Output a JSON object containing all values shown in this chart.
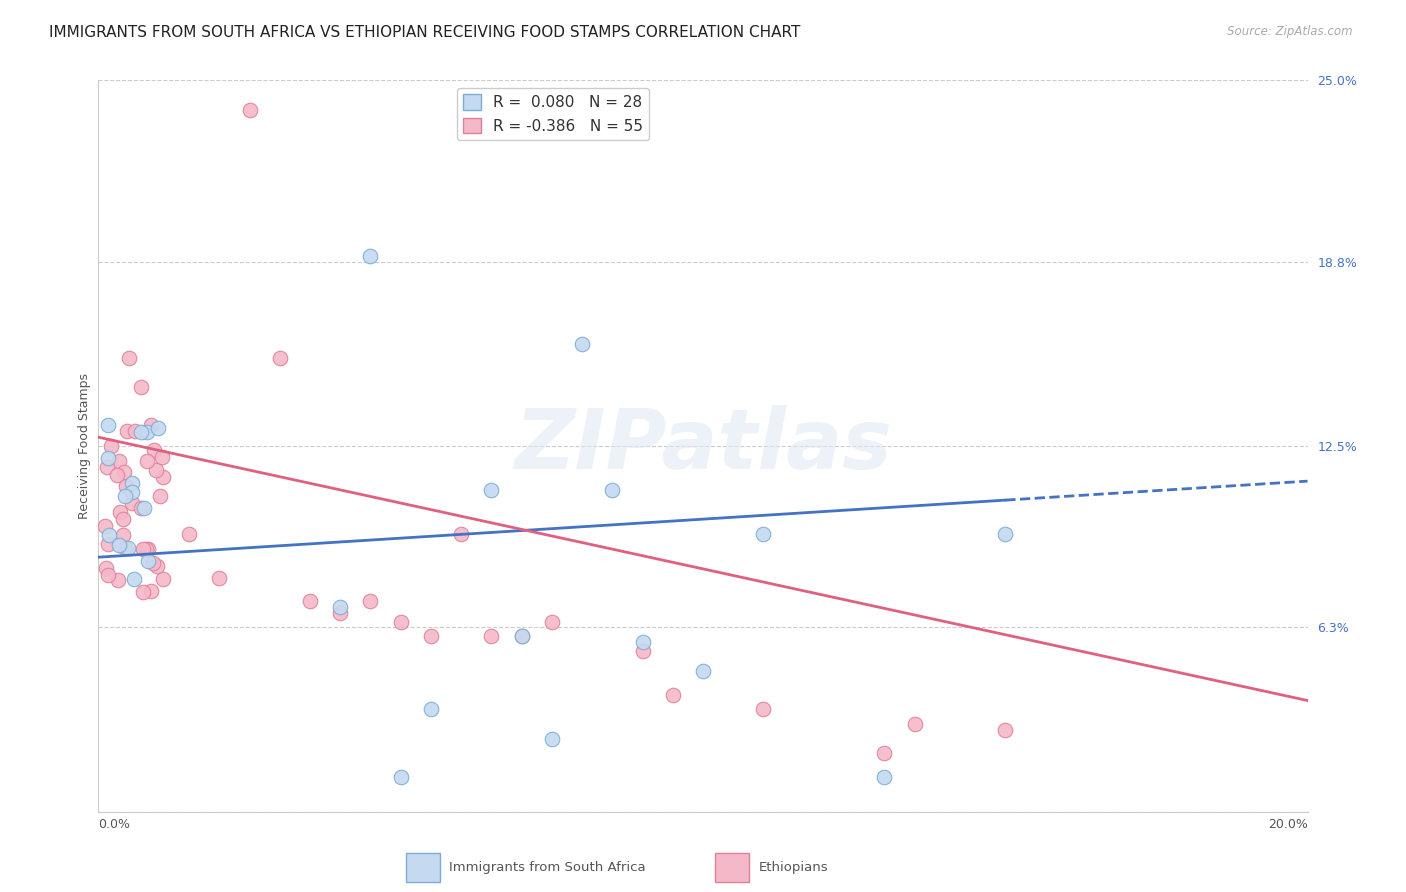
{
  "title": "IMMIGRANTS FROM SOUTH AFRICA VS ETHIOPIAN RECEIVING FOOD STAMPS CORRELATION CHART",
  "source": "Source: ZipAtlas.com",
  "ylabel": "Receiving Food Stamps",
  "blue_label": "Immigrants from South Africa",
  "pink_label": "Ethiopians",
  "xmin": 0.0,
  "xmax": 0.2,
  "ymin": 0.0,
  "ymax": 0.25,
  "blue_dot_color": "#c5d9f0",
  "blue_edge_color": "#7aadd4",
  "blue_line_color": "#4472c4",
  "pink_dot_color": "#f4b8c8",
  "pink_edge_color": "#e08098",
  "pink_line_color": "#e06080",
  "right_axis_color": "#4472c4",
  "grid_color": "#cccccc",
  "background_color": "#ffffff",
  "legend_r_blue": "R =  0.080",
  "legend_n_blue": "N = 28",
  "legend_r_pink": "R = -0.386",
  "legend_n_pink": "N = 55",
  "right_ytick_vals": [
    0.0,
    0.063,
    0.125,
    0.188,
    0.25
  ],
  "right_ytick_labels": [
    "",
    "6.3%",
    "12.5%",
    "18.8%",
    "25.0%"
  ],
  "blue_line_y0": 0.087,
  "blue_line_y1": 0.113,
  "pink_line_y0": 0.128,
  "pink_line_y1": 0.038,
  "watermark": "ZIPatlas",
  "title_fontsize": 11,
  "tick_fontsize": 9,
  "label_fontsize": 9,
  "scatter_size": 110
}
